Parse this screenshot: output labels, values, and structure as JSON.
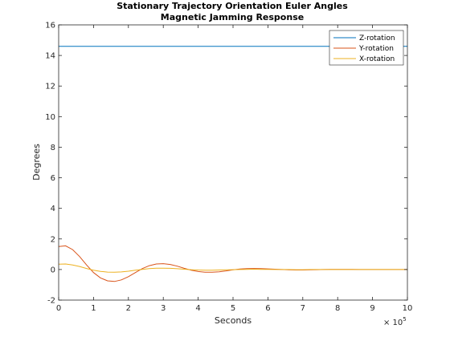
{
  "chart_data": {
    "type": "line",
    "title": "Stationary Trajectory Orientation Euler Angles",
    "subtitle": "Magnetic Jamming Response",
    "xlabel": "Seconds",
    "ylabel": "Degrees",
    "xlim": [
      0,
      1000000
    ],
    "ylim": [
      -2,
      16
    ],
    "x_ticks": [
      0,
      100000,
      200000,
      300000,
      400000,
      500000,
      600000,
      700000,
      800000,
      900000,
      1000000
    ],
    "x_tick_labels": [
      "0",
      "1",
      "2",
      "3",
      "4",
      "5",
      "6",
      "7",
      "8",
      "9",
      "10"
    ],
    "x_exponent_base": "× 10",
    "x_exponent": "5",
    "y_ticks": [
      -2,
      0,
      2,
      4,
      6,
      8,
      10,
      12,
      14,
      16
    ],
    "y_tick_labels": [
      "-2",
      "0",
      "2",
      "4",
      "6",
      "8",
      "10",
      "12",
      "14",
      "16"
    ],
    "grid": false,
    "legend_position": "top-right",
    "x": [
      0,
      20000,
      40000,
      60000,
      80000,
      100000,
      120000,
      140000,
      160000,
      180000,
      200000,
      220000,
      240000,
      260000,
      280000,
      300000,
      320000,
      340000,
      360000,
      380000,
      400000,
      420000,
      440000,
      460000,
      480000,
      500000,
      520000,
      540000,
      560000,
      580000,
      600000,
      620000,
      640000,
      660000,
      680000,
      700000,
      720000,
      740000,
      760000,
      780000,
      800000,
      820000,
      840000,
      860000,
      880000,
      900000,
      920000,
      940000,
      960000,
      980000,
      1000000
    ],
    "series": [
      {
        "name": "Z-rotation",
        "color": "#0072BD",
        "values": [
          14.6,
          14.6,
          14.6,
          14.6,
          14.6,
          14.6,
          14.6,
          14.6,
          14.6,
          14.6,
          14.6,
          14.6,
          14.6,
          14.6,
          14.6,
          14.6,
          14.6,
          14.6,
          14.6,
          14.6,
          14.6,
          14.6,
          14.6,
          14.6,
          14.6,
          14.6,
          14.6,
          14.6,
          14.6,
          14.6,
          14.6,
          14.6,
          14.6,
          14.6,
          14.6,
          14.6,
          14.6,
          14.6,
          14.6,
          14.6,
          14.6,
          14.6,
          14.6,
          14.6,
          14.6,
          14.6,
          14.6,
          14.6,
          14.6,
          14.6,
          14.6
        ]
      },
      {
        "name": "Y-rotation",
        "color": "#D95319",
        "values": [
          1.5,
          1.55,
          1.3,
          0.85,
          0.3,
          -0.2,
          -0.55,
          -0.74,
          -0.78,
          -0.68,
          -0.47,
          -0.2,
          0.06,
          0.25,
          0.36,
          0.38,
          0.33,
          0.22,
          0.08,
          -0.04,
          -0.13,
          -0.18,
          -0.18,
          -0.15,
          -0.09,
          -0.02,
          0.03,
          0.06,
          0.07,
          0.06,
          0.04,
          0.02,
          0.0,
          -0.02,
          -0.03,
          -0.03,
          -0.02,
          -0.01,
          0.0,
          0.01,
          0.01,
          0.01,
          0.01,
          0.0,
          0.0,
          0.0,
          0.0,
          0.0,
          0.0,
          0.0,
          0.0
        ]
      },
      {
        "name": "X-rotation",
        "color": "#EDB120",
        "values": [
          0.35,
          0.36,
          0.3,
          0.2,
          0.07,
          -0.04,
          -0.12,
          -0.17,
          -0.18,
          -0.16,
          -0.11,
          -0.05,
          0.01,
          0.06,
          0.09,
          0.09,
          0.08,
          0.05,
          0.02,
          -0.01,
          -0.03,
          -0.04,
          -0.04,
          -0.03,
          -0.02,
          -0.01,
          0.0,
          0.01,
          0.02,
          0.01,
          0.01,
          0.0,
          0.0,
          0.0,
          -0.01,
          -0.01,
          0.0,
          0.0,
          0.0,
          0.0,
          0.0,
          0.0,
          0.0,
          0.0,
          0.0,
          0.0,
          0.0,
          0.0,
          0.0,
          0.0,
          0.0
        ]
      }
    ]
  }
}
